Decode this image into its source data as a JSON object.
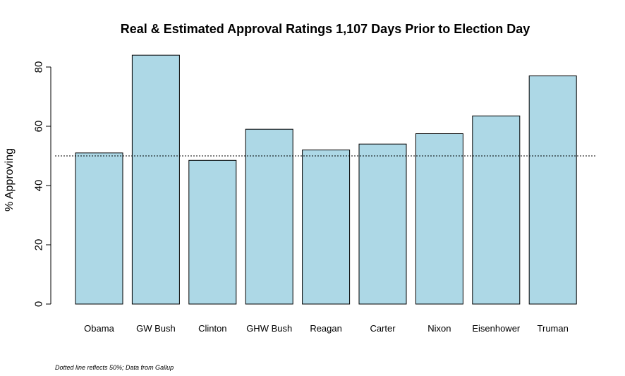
{
  "chart_data": {
    "type": "bar",
    "title": "Real & Estimated Approval Ratings 1,107 Days Prior to Election Day",
    "xlabel": "",
    "ylabel": "% Approving",
    "categories": [
      "Obama",
      "GW Bush",
      "Clinton",
      "GHW Bush",
      "Reagan",
      "Carter",
      "Nixon",
      "Eisenhower",
      "Truman"
    ],
    "values": [
      51,
      84,
      48.5,
      59,
      52,
      54,
      57.5,
      63.5,
      77
    ],
    "ylim": [
      0,
      80
    ],
    "yticks": [
      0,
      20,
      40,
      60,
      80
    ],
    "reference_line": {
      "value": 50,
      "style": "dotted"
    },
    "bar_color": "#add8e6",
    "grid": false,
    "legend": "none",
    "footnote": "Dotted line reflects 50%; Data from Gallup"
  }
}
